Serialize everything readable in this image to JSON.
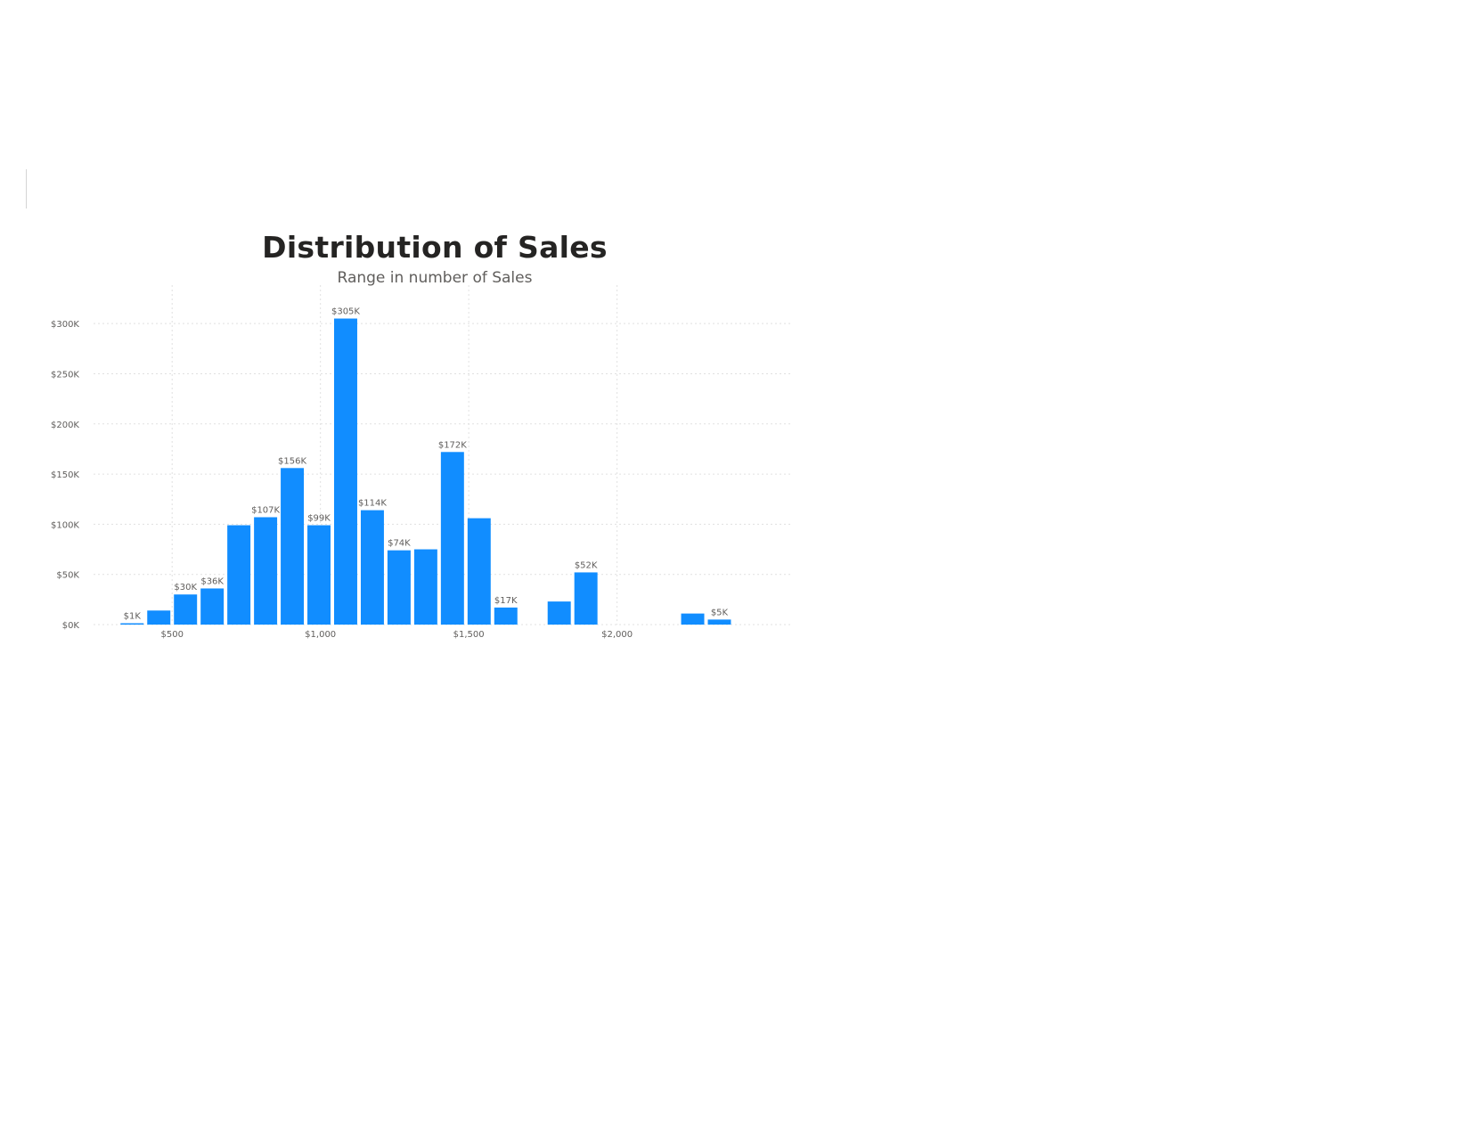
{
  "chart_data": {
    "type": "bar",
    "title": "Distribution of Sales",
    "subtitle": "Range in number of Sales",
    "xlabel": "",
    "ylabel": "",
    "bin_width": 90,
    "bar_color": "#118DFF",
    "x_ticks": [
      {
        "value": 500,
        "label": "$500"
      },
      {
        "value": 1000,
        "label": "$1,000"
      },
      {
        "value": 1500,
        "label": "$1,500"
      },
      {
        "value": 2000,
        "label": "$2,000"
      }
    ],
    "y_ticks": [
      {
        "value": 0,
        "label": "$0K"
      },
      {
        "value": 50,
        "label": "$50K"
      },
      {
        "value": 100,
        "label": "$100K"
      },
      {
        "value": 150,
        "label": "$150K"
      },
      {
        "value": 200,
        "label": "$200K"
      },
      {
        "value": 250,
        "label": "$250K"
      },
      {
        "value": 300,
        "label": "$300K"
      }
    ],
    "xlim": [
      235,
      2680
    ],
    "ylim": [
      0,
      325
    ],
    "grid": true,
    "bins": [
      {
        "x": 365,
        "value": 1,
        "label": "$1K"
      },
      {
        "x": 455,
        "value": 14,
        "label": ""
      },
      {
        "x": 545,
        "value": 30,
        "label": "$30K"
      },
      {
        "x": 635,
        "value": 36,
        "label": "$36K"
      },
      {
        "x": 725,
        "value": 99,
        "label": ""
      },
      {
        "x": 815,
        "value": 107,
        "label": "$107K"
      },
      {
        "x": 905,
        "value": 156,
        "label": "$156K"
      },
      {
        "x": 995,
        "value": 99,
        "label": "$99K"
      },
      {
        "x": 1085,
        "value": 305,
        "label": "$305K"
      },
      {
        "x": 1175,
        "value": 114,
        "label": "$114K"
      },
      {
        "x": 1265,
        "value": 74,
        "label": "$74K"
      },
      {
        "x": 1355,
        "value": 75,
        "label": ""
      },
      {
        "x": 1445,
        "value": 172,
        "label": "$172K"
      },
      {
        "x": 1535,
        "value": 106,
        "label": ""
      },
      {
        "x": 1625,
        "value": 17,
        "label": "$17K"
      },
      {
        "x": 1805,
        "value": 23,
        "label": ""
      },
      {
        "x": 1895,
        "value": 52,
        "label": "$52K"
      },
      {
        "x": 2255,
        "value": 11,
        "label": ""
      },
      {
        "x": 2345,
        "value": 5,
        "label": "$5K"
      }
    ]
  }
}
